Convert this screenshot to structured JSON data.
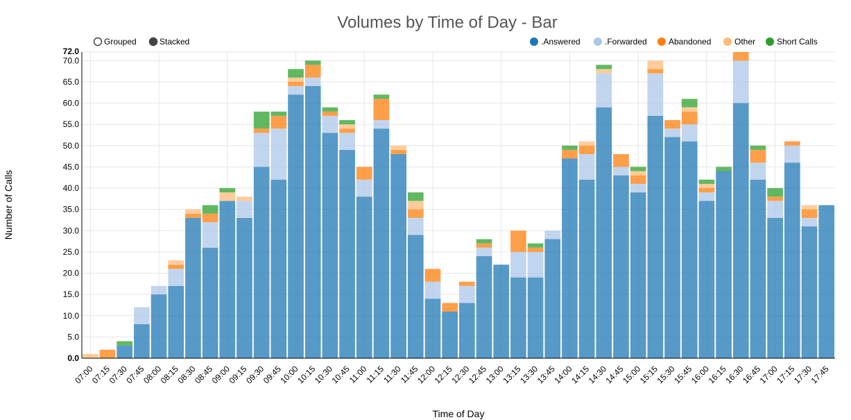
{
  "chart_data": {
    "type": "bar",
    "mode": "stacked",
    "title": "Volumes by Time of Day - Bar",
    "xlabel": "Time of Day",
    "ylabel": "Number of Calls",
    "ylim": [
      0,
      72
    ],
    "yticks": [
      0,
      5,
      10,
      15,
      20,
      25,
      30,
      35,
      40,
      45,
      50,
      55,
      60,
      65,
      70
    ],
    "ytick_labels": [
      "0.0",
      "5.0",
      "10.0",
      "15.0",
      "20.0",
      "25.0",
      "30.0",
      "35.0",
      "40.0",
      "45.0",
      "50.0",
      "55.0",
      "60.0",
      "65.0",
      "70.0"
    ],
    "ymax_label": "72.0",
    "grid": true,
    "legend_position": "top-right",
    "mode_controls": [
      {
        "label": "Grouped",
        "selected": false
      },
      {
        "label": "Stacked",
        "selected": true
      }
    ],
    "categories": [
      "07:00",
      "07:15",
      "07:30",
      "07:45",
      "08:00",
      "08:15",
      "08:30",
      "08:45",
      "09:00",
      "09:15",
      "09:30",
      "09:45",
      "10:00",
      "10:15",
      "10:30",
      "10:45",
      "11:00",
      "11:15",
      "11:30",
      "11:45",
      "12:00",
      "12:15",
      "12:30",
      "12:45",
      "13:00",
      "13:15",
      "13:30",
      "13:45",
      "14:00",
      "14:15",
      "14:30",
      "14:45",
      "15:00",
      "15:15",
      "15:30",
      "15:45",
      "16:00",
      "16:15",
      "16:30",
      "16:45",
      "17:00",
      "17:15",
      "17:30",
      "17:45"
    ],
    "series": [
      {
        "name": ".Answered",
        "color": "#1f77b4",
        "values": [
          0,
          0,
          3,
          8,
          15,
          17,
          33,
          26,
          37,
          33,
          45,
          42,
          62,
          64,
          53,
          49,
          38,
          54,
          48,
          29,
          14,
          11,
          13,
          24,
          22,
          19,
          19,
          28,
          47,
          42,
          59,
          43,
          39,
          57,
          52,
          51,
          37,
          44,
          60,
          42,
          33,
          46,
          31,
          36
        ]
      },
      {
        "name": ".Forwarded",
        "color": "#aec7e8",
        "values": [
          0,
          0,
          0,
          4,
          2,
          4,
          0,
          6,
          0,
          4,
          8,
          12,
          2,
          2,
          4,
          4,
          4,
          2,
          0,
          4,
          4,
          0,
          4,
          2,
          0,
          6,
          6,
          2,
          0,
          6,
          8,
          2,
          2,
          10,
          2,
          4,
          2,
          0,
          10,
          4,
          4,
          4,
          2,
          0
        ]
      },
      {
        "name": "Abandoned",
        "color": "#ff7f0e",
        "values": [
          0,
          2,
          0,
          0,
          0,
          1,
          1,
          2,
          0,
          0,
          1,
          3,
          1,
          3,
          1,
          1,
          3,
          5,
          1,
          2,
          3,
          2,
          1,
          1,
          0,
          5,
          1,
          0,
          2,
          2,
          0,
          3,
          2,
          1,
          2,
          3,
          1,
          0,
          2,
          3,
          1,
          1,
          2,
          0
        ]
      },
      {
        "name": "Other",
        "color": "#ffbb78",
        "values": [
          1,
          0,
          0,
          0,
          0,
          1,
          1,
          0,
          2,
          1,
          0,
          0,
          1,
          0,
          0,
          1,
          0,
          0,
          1,
          2,
          0,
          0,
          0,
          0,
          0,
          0,
          0,
          0,
          0,
          1,
          1,
          0,
          1,
          2,
          0,
          1,
          1,
          0,
          0,
          0,
          0,
          0,
          1,
          0
        ]
      },
      {
        "name": "Short Calls",
        "color": "#2ca02c",
        "values": [
          0,
          0,
          1,
          0,
          0,
          0,
          0,
          2,
          1,
          0,
          4,
          1,
          2,
          1,
          1,
          1,
          0,
          1,
          0,
          2,
          0,
          0,
          0,
          1,
          0,
          0,
          1,
          0,
          1,
          0,
          1,
          0,
          1,
          0,
          0,
          2,
          1,
          1,
          0,
          1,
          2,
          0,
          0,
          0
        ]
      }
    ]
  }
}
